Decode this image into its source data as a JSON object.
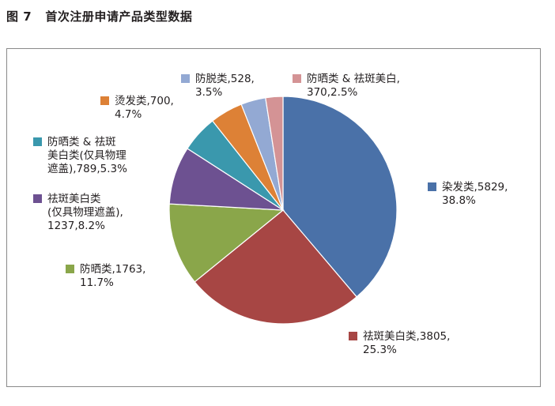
{
  "figure_title": "图 7   首次注册申请产品类型数据",
  "chart_data": {
    "type": "pie",
    "slices": [
      {
        "category": "染发类",
        "value": 5829,
        "percent": "38.8%",
        "color": "#4a71a8",
        "label_lines": [
          "染发类,5829,",
          "38.8%"
        ]
      },
      {
        "category": "祛斑美白类",
        "value": 3805,
        "percent": "25.3%",
        "color": "#a74644",
        "label_lines": [
          "祛斑美白类,3805,",
          "25.3%"
        ]
      },
      {
        "category": "防晒类",
        "value": 1763,
        "percent": "11.7%",
        "color": "#8aa64a",
        "label_lines": [
          "防晒类,1763,",
          "11.7%"
        ]
      },
      {
        "category": "祛斑美白类（仅具物理遮盖）",
        "value": 1237,
        "percent": "8.2%",
        "color": "#6d5191",
        "label_lines": [
          "祛斑美白类",
          "(仅具物理遮盖),",
          "1237,8.2%"
        ]
      },
      {
        "category": "防晒类 & 祛斑美白类（仅具物理遮盖）",
        "value": 789,
        "percent": "5.3%",
        "color": "#3a98ad",
        "label_lines": [
          "防晒类 & 祛斑",
          "美白类(仅具物理",
          "遮盖),789,5.3%"
        ]
      },
      {
        "category": "烫发类",
        "value": 700,
        "percent": "4.7%",
        "color": "#dd8136",
        "label_lines": [
          "烫发类,700,",
          "4.7%"
        ]
      },
      {
        "category": "防脱类",
        "value": 528,
        "percent": "3.5%",
        "color": "#93a9d3",
        "label_lines": [
          "防脱类,528,",
          "3.5%"
        ]
      },
      {
        "category": "防晒类 & 祛斑美白",
        "value": 370,
        "percent": "2.5%",
        "color": "#d49395",
        "label_lines": [
          "防晒类 & 祛斑美白,",
          "370,2.5%"
        ]
      }
    ],
    "start_angle": "12 o'clock",
    "direction": "clockwise"
  }
}
